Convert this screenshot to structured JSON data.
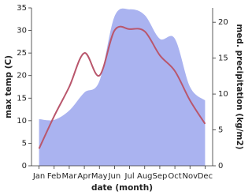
{
  "chart_data": {
    "type": "line",
    "xlabel": "date (month)",
    "ylabel": "max temp (C)",
    "y2label": "med. precipitation (kg/m2)",
    "categories": [
      "Jan",
      "Feb",
      "Mar",
      "Apr",
      "May",
      "Jun",
      "Jul",
      "Aug",
      "Sep",
      "Oct",
      "Nov",
      "Dec"
    ],
    "series": [
      {
        "type": "area",
        "axis": "y2",
        "color": "#aab3f0",
        "values": [
          6.5,
          6.4,
          7.7,
          10.2,
          11.8,
          20.8,
          21.8,
          21,
          17.7,
          17.7,
          11,
          9.1
        ]
      },
      {
        "type": "line",
        "axis": "y",
        "color": "#b9566c",
        "values": [
          3.8,
          11,
          17.5,
          25,
          20,
          30,
          30.3,
          29.8,
          24.5,
          21,
          14.5,
          9.3
        ]
      }
    ],
    "ylim": [
      0,
      35
    ],
    "yticks": [
      0,
      5,
      10,
      15,
      20,
      25,
      30,
      35
    ],
    "y2lim": [
      0,
      22
    ],
    "y2ticks": [
      0,
      5,
      10,
      15,
      20
    ]
  }
}
